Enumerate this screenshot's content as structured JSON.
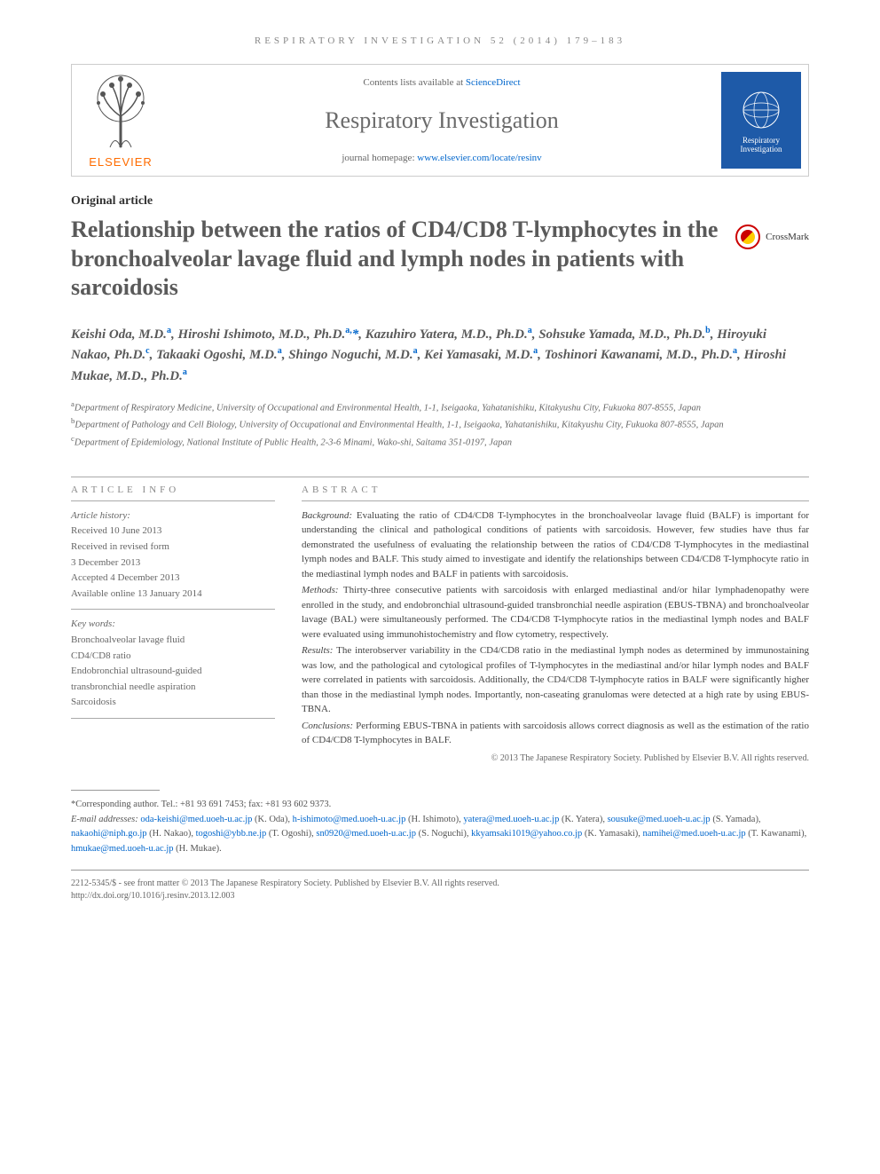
{
  "running_header": "RESPIRATORY INVESTIGATION 52 (2014) 179–183",
  "header": {
    "contents_prefix": "Contents lists available at ",
    "contents_link": "ScienceDirect",
    "journal": "Respiratory Investigation",
    "homepage_prefix": "journal homepage: ",
    "homepage_link": "www.elsevier.com/locate/resinv",
    "publisher": "ELSEVIER",
    "cover_label": "Respiratory Investigation"
  },
  "article_type": "Original article",
  "crossmark": "CrossMark",
  "title": "Relationship between the ratios of CD4/CD8 T-lymphocytes in the bronchoalveolar lavage fluid and lymph nodes in patients with sarcoidosis",
  "authors_html": "Keishi Oda, M.D.<sup>a</sup>, Hiroshi Ishimoto, M.D., Ph.D.<sup>a,</sup><span class='star'>*</span>, Kazuhiro Yatera, M.D., Ph.D.<sup>a</sup>, Sohsuke Yamada, M.D., Ph.D.<sup>b</sup>, Hiroyuki Nakao, Ph.D.<sup>c</sup>, Takaaki Ogoshi, M.D.<sup>a</sup>, Shingo Noguchi, M.D.<sup>a</sup>, Kei Yamasaki, M.D.<sup>a</sup>, Toshinori Kawanami, M.D., Ph.D.<sup>a</sup>, Hiroshi Mukae, M.D., Ph.D.<sup>a</sup>",
  "affiliations": [
    {
      "sup": "a",
      "text": "Department of Respiratory Medicine, University of Occupational and Environmental Health, 1-1, Iseigaoka, Yahatanishiku, Kitakyushu City, Fukuoka 807-8555, Japan"
    },
    {
      "sup": "b",
      "text": "Department of Pathology and Cell Biology, University of Occupational and Environmental Health, 1-1, Iseigaoka, Yahatanishiku, Kitakyushu City, Fukuoka 807-8555, Japan"
    },
    {
      "sup": "c",
      "text": "Department of Epidemiology, National Institute of Public Health, 2-3-6 Minami, Wako-shi, Saitama 351-0197, Japan"
    }
  ],
  "article_info": {
    "heading": "article info",
    "history_label": "Article history:",
    "history": [
      "Received 10 June 2013",
      "Received in revised form",
      "3 December 2013",
      "Accepted 4 December 2013",
      "Available online 13 January 2014"
    ],
    "keywords_label": "Key words:",
    "keywords": [
      "Bronchoalveolar lavage fluid",
      "CD4/CD8 ratio",
      "Endobronchial ultrasound-guided",
      "transbronchial needle aspiration",
      "Sarcoidosis"
    ]
  },
  "abstract": {
    "heading": "abstract",
    "sections": [
      {
        "label": "Background:",
        "text": "Evaluating the ratio of CD4/CD8 T-lymphocytes in the bronchoalveolar lavage fluid (BALF) is important for understanding the clinical and pathological conditions of patients with sarcoidosis. However, few studies have thus far demonstrated the usefulness of evaluating the relationship between the ratios of CD4/CD8 T-lymphocytes in the mediastinal lymph nodes and BALF. This study aimed to investigate and identify the relationships between CD4/CD8 T-lymphocyte ratio in the mediastinal lymph nodes and BALF in patients with sarcoidosis."
      },
      {
        "label": "Methods:",
        "text": "Thirty-three consecutive patients with sarcoidosis with enlarged mediastinal and/or hilar lymphadenopathy were enrolled in the study, and endobronchial ultrasound-guided transbronchial needle aspiration (EBUS-TBNA) and bronchoalveolar lavage (BAL) were simultaneously performed. The CD4/CD8 T-lymphocyte ratios in the mediastinal lymph nodes and BALF were evaluated using immunohistochemistry and flow cytometry, respectively."
      },
      {
        "label": "Results:",
        "text": "The interobserver variability in the CD4/CD8 ratio in the mediastinal lymph nodes as determined by immunostaining was low, and the pathological and cytological profiles of T-lymphocytes in the mediastinal and/or hilar lymph nodes and BALF were correlated in patients with sarcoidosis. Additionally, the CD4/CD8 T-lymphocyte ratios in BALF were significantly higher than those in the mediastinal lymph nodes. Importantly, non-caseating granulomas were detected at a high rate by using EBUS-TBNA."
      },
      {
        "label": "Conclusions:",
        "text": "Performing EBUS-TBNA in patients with sarcoidosis allows correct diagnosis as well as the estimation of the ratio of CD4/CD8 T-lymphocytes in BALF."
      }
    ],
    "copyright": "© 2013 The Japanese Respiratory Society. Published by Elsevier B.V. All rights reserved."
  },
  "footnotes": {
    "corresponding": "*Corresponding author. Tel.: +81 93 691 7453; fax: +81 93 602 9373.",
    "emails_label": "E-mail addresses:",
    "emails": [
      {
        "addr": "oda-keishi@med.uoeh-u.ac.jp",
        "who": "(K. Oda)"
      },
      {
        "addr": "h-ishimoto@med.uoeh-u.ac.jp",
        "who": "(H. Ishimoto)"
      },
      {
        "addr": "yatera@med.uoeh-u.ac.jp",
        "who": "(K. Yatera)"
      },
      {
        "addr": "sousuke@med.uoeh-u.ac.jp",
        "who": "(S. Yamada)"
      },
      {
        "addr": "nakaohi@niph.go.jp",
        "who": "(H. Nakao)"
      },
      {
        "addr": "togoshi@ybb.ne.jp",
        "who": "(T. Ogoshi)"
      },
      {
        "addr": "sn0920@med.uoeh-u.ac.jp",
        "who": "(S. Noguchi)"
      },
      {
        "addr": "kkyamsaki1019@yahoo.co.jp",
        "who": "(K. Yamasaki)"
      },
      {
        "addr": "namihei@med.uoeh-u.ac.jp",
        "who": "(T. Kawanami)"
      },
      {
        "addr": "hmukae@med.uoeh-u.ac.jp",
        "who": "(H. Mukae)"
      }
    ]
  },
  "issn": {
    "line1": "2212-5345/$ - see front matter © 2013 The Japanese Respiratory Society. Published by Elsevier B.V. All rights reserved.",
    "line2": "http://dx.doi.org/10.1016/j.resinv.2013.12.003"
  },
  "colors": {
    "link": "#0066cc",
    "elsevier_orange": "#ff6c00",
    "title_grey": "#5a5a5a",
    "cover_blue": "#1e5aa8"
  }
}
